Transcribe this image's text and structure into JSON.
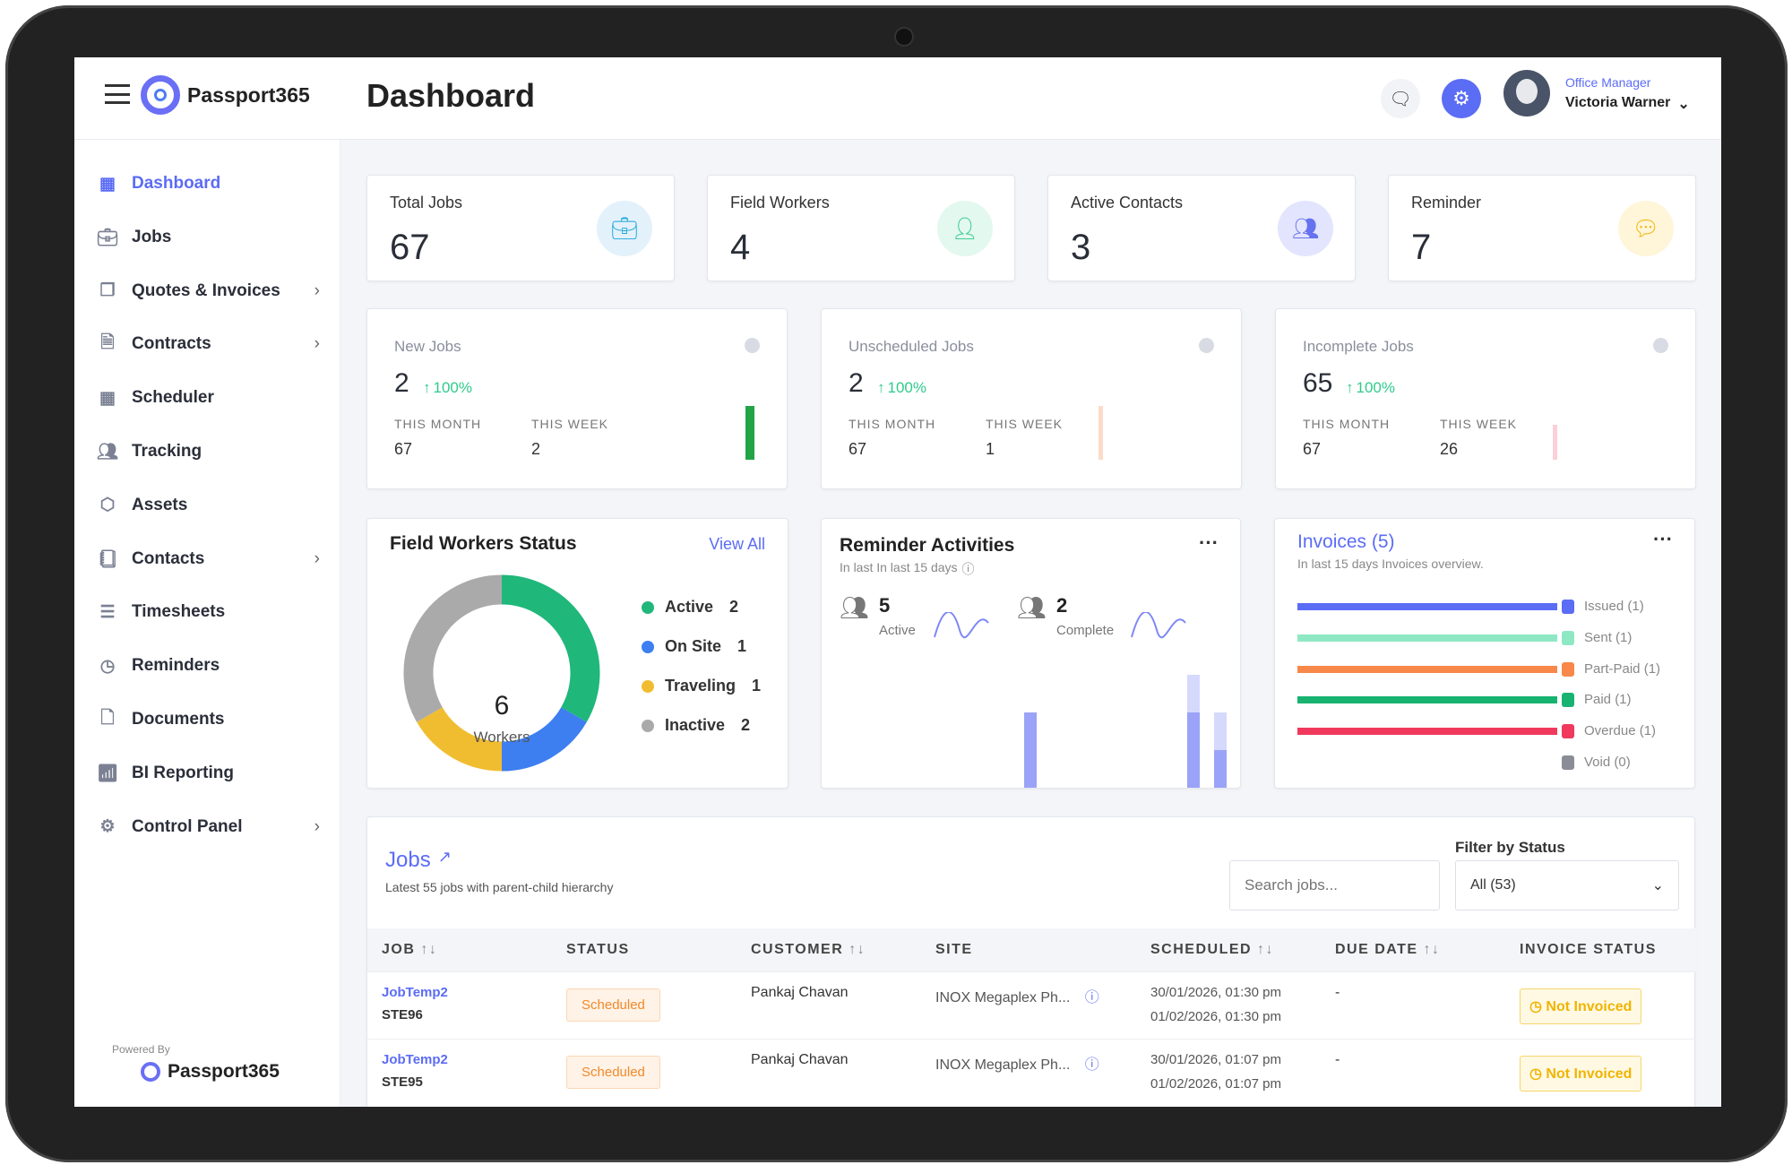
{
  "app": {
    "name": "Passport365",
    "page_title": "Dashboard",
    "powered_by": "Powered By"
  },
  "user": {
    "role": "Office Manager",
    "name": "Victoria Warner"
  },
  "sidebar": {
    "items": [
      {
        "label": "Dashboard",
        "icon": "grid-icon",
        "active": true,
        "has_children": false
      },
      {
        "label": "Jobs",
        "icon": "briefcase-icon",
        "has_children": false
      },
      {
        "label": "Quotes & Invoices",
        "icon": "document-copy-icon",
        "has_children": true
      },
      {
        "label": "Contracts",
        "icon": "contract-icon",
        "has_children": true
      },
      {
        "label": "Scheduler",
        "icon": "calendar-icon",
        "has_children": false
      },
      {
        "label": "Tracking",
        "icon": "users-icon",
        "has_children": false
      },
      {
        "label": "Assets",
        "icon": "cube-icon",
        "has_children": false
      },
      {
        "label": "Contacts",
        "icon": "contact-book-icon",
        "has_children": true
      },
      {
        "label": "Timesheets",
        "icon": "table-icon",
        "has_children": false
      },
      {
        "label": "Reminders",
        "icon": "clock-icon",
        "has_children": false
      },
      {
        "label": "Documents",
        "icon": "doc-icon",
        "has_children": false
      },
      {
        "label": "BI Reporting",
        "icon": "bar-chart-icon",
        "has_children": false
      },
      {
        "label": "Control Panel",
        "icon": "gear-icon",
        "has_children": true
      }
    ]
  },
  "stats": [
    {
      "label": "Total Jobs",
      "value": "67",
      "icon": "briefcase-icon",
      "color": "#1fa7d9",
      "bg": "#e3f1fb"
    },
    {
      "label": "Field Workers",
      "value": "4",
      "icon": "user-check-icon",
      "color": "#2fcb8b",
      "bg": "#e3f8ef"
    },
    {
      "label": "Active Contacts",
      "value": "3",
      "icon": "users-icon",
      "color": "#6772f0",
      "bg": "#e2e5fd"
    },
    {
      "label": "Reminder",
      "value": "7",
      "icon": "message-icon",
      "color": "#f0b400",
      "bg": "#fff5d9"
    }
  ],
  "summary": [
    {
      "label": "New Jobs",
      "value": "2",
      "change": "100%",
      "month_label": "THIS MONTH",
      "month": "67",
      "week_label": "THIS WEEK",
      "week": "2",
      "bar_color": "#22a447",
      "bar_level": 1.0
    },
    {
      "label": "Unscheduled Jobs",
      "value": "2",
      "change": "100%",
      "month_label": "THIS MONTH",
      "month": "67",
      "week_label": "THIS WEEK",
      "week": "1",
      "bar_color": "#fcdcc8",
      "bar_level": 1.0
    },
    {
      "label": "Incomplete Jobs",
      "value": "65",
      "change": "100%",
      "month_label": "THIS MONTH",
      "month": "67",
      "week_label": "THIS WEEK",
      "week": "26",
      "bar_color": "#fbd0d8",
      "bar_level": 0.65
    }
  ],
  "field_workers": {
    "title": "Field Workers Status",
    "view_all": "View All",
    "total": "6",
    "total_label": "Workers",
    "segments": [
      {
        "label": "Active",
        "value": 2,
        "color": "#20b77b"
      },
      {
        "label": "On Site",
        "value": 1,
        "color": "#3d7ff0"
      },
      {
        "label": "Traveling",
        "value": 1,
        "color": "#f1bd30"
      },
      {
        "label": "Inactive",
        "value": 2,
        "color": "#aaaaaa"
      }
    ]
  },
  "reminders": {
    "title": "Reminder Activities",
    "subtitle": "In last In last 15 days",
    "active_value": "5",
    "active_label": "Active",
    "complete_value": "2",
    "complete_label": "Complete",
    "bars": [
      {
        "light": 2,
        "dark": 2
      },
      {
        "light": 3,
        "dark": 2
      },
      {
        "light": 2,
        "dark": 1
      }
    ]
  },
  "invoices": {
    "title": "Invoices (5)",
    "subtitle": "In last 15 days Invoices overview.",
    "items": [
      {
        "label": "Issued (1)",
        "color": "#5b6cf5",
        "count": 1
      },
      {
        "label": "Sent (1)",
        "color": "#8fe8c4",
        "count": 1
      },
      {
        "label": "Part-Paid (1)",
        "color": "#f7884a",
        "count": 1
      },
      {
        "label": "Paid (1)",
        "color": "#18b370",
        "count": 1
      },
      {
        "label": "Overdue (1)",
        "color": "#f0395c",
        "count": 1
      },
      {
        "label": "Void (0)",
        "color": "#8a8d96",
        "count": 0
      }
    ]
  },
  "jobs": {
    "title": "Jobs",
    "subtitle": "Latest 55 jobs with parent-child hierarchy",
    "search_placeholder": "Search jobs...",
    "filter_label": "Filter by Status",
    "filter_value": "All (53)",
    "columns": [
      "JOB",
      "STATUS",
      "CUSTOMER",
      "SITE",
      "SCHEDULED",
      "DUE DATE",
      "INVOICE STATUS"
    ],
    "rows": [
      {
        "job": "JobTemp2",
        "code": "STE96",
        "status": "Scheduled",
        "customer": "Pankaj Chavan",
        "site": "INOX Megaplex Ph...",
        "start": "30/01/2026, 01:30 pm",
        "end": "01/02/2026, 01:30 pm",
        "due": "-",
        "invoice": "Not Invoiced"
      },
      {
        "job": "JobTemp2",
        "code": "STE95",
        "status": "Scheduled",
        "customer": "Pankaj Chavan",
        "site": "INOX Megaplex Ph...",
        "start": "30/01/2026, 01:07 pm",
        "end": "01/02/2026, 01:07 pm",
        "due": "-",
        "invoice": "Not Invoiced"
      }
    ]
  }
}
